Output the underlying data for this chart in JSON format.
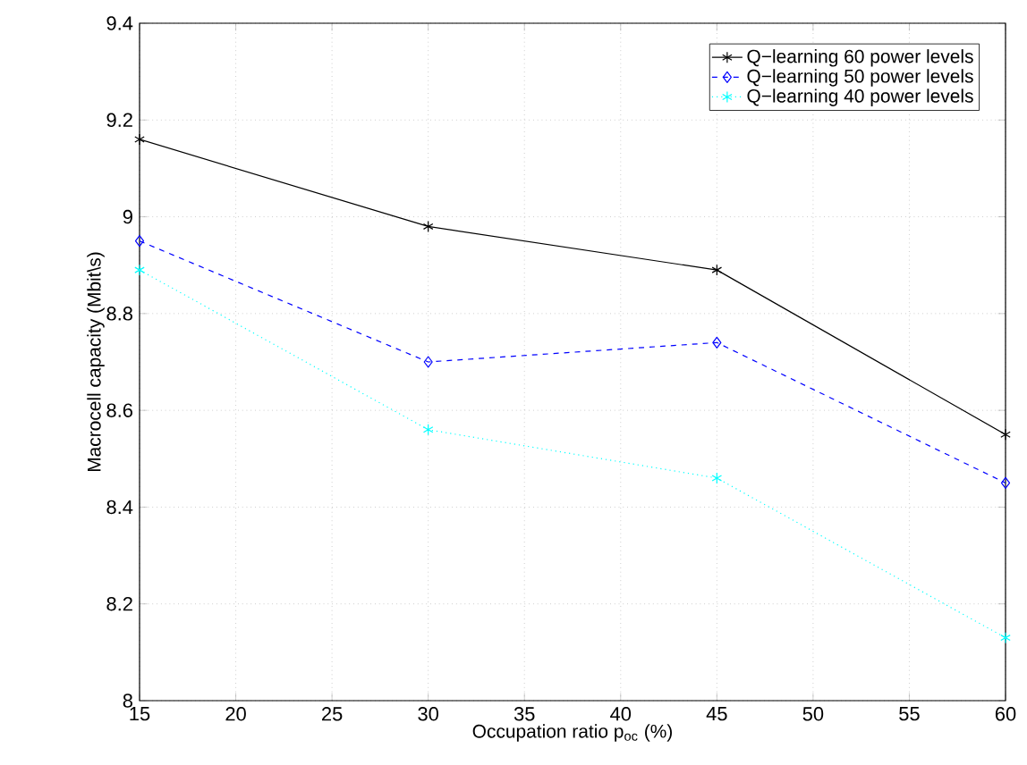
{
  "chart_data": {
    "type": "line",
    "xlabel": "Occupation ratio p$_{oc}$ (%)",
    "ylabel": "Macrocell capacity (Mbit\\s)",
    "x": [
      15,
      30,
      45,
      60
    ],
    "series": [
      {
        "name": "Q−learning 60 power levels",
        "color": "#000000",
        "marker": "cross",
        "line_style": "solid",
        "values": [
          9.16,
          8.98,
          8.89,
          8.55
        ]
      },
      {
        "name": "Q−learning 50 power levels",
        "color": "#0000ff",
        "marker": "diamond",
        "line_style": "dashed",
        "values": [
          8.95,
          8.7,
          8.74,
          8.45
        ]
      },
      {
        "name": "Q−learning 40 power levels",
        "color": "#00ffff",
        "marker": "cross",
        "line_style": "dotted",
        "values": [
          8.89,
          8.56,
          8.46,
          8.13
        ]
      }
    ],
    "xlim": [
      15,
      60
    ],
    "xticks": [
      15,
      20,
      25,
      30,
      35,
      40,
      45,
      50,
      55,
      60
    ],
    "ylim": [
      8,
      9.4
    ],
    "yticks": [
      8,
      8.2,
      8.4,
      8.6,
      8.8,
      9,
      9.2,
      9.4
    ],
    "grid": true,
    "legend": "top right"
  }
}
